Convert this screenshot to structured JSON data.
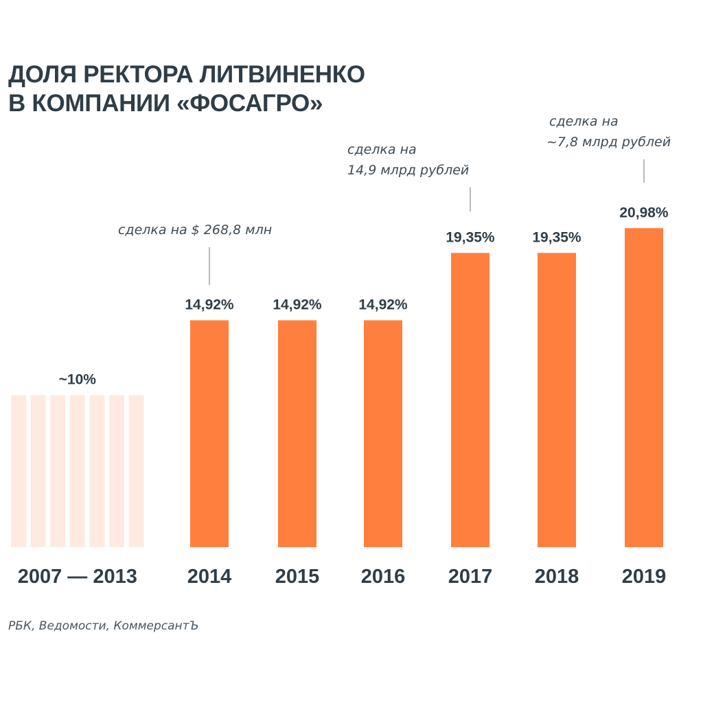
{
  "title_lines": [
    "ДОЛЯ РЕКТОРА ЛИТВИНЕНКО",
    "В КОМПАНИИ «ФОСАГРО»"
  ],
  "source": "РБК, Ведомости, КоммерсантЪ",
  "colors": {
    "bar": "#ff7f3f",
    "bar_faded": "#ffeae1",
    "text": "#2f3d47",
    "leader_line": "#9aa3aa"
  },
  "chart_data": {
    "type": "bar",
    "title": "ДОЛЯ РЕКТОРА ЛИТВИНЕНКО В КОМПАНИИ «ФОСАГРО»",
    "xlabel": "",
    "ylabel": "",
    "ylim": [
      0,
      22
    ],
    "grid": false,
    "unit": "%",
    "categories": [
      "2007 — 2013",
      "2014",
      "2015",
      "2016",
      "2017",
      "2018",
      "2019"
    ],
    "values": [
      10,
      14.92,
      14.92,
      14.92,
      19.35,
      19.35,
      20.98
    ],
    "value_labels": [
      "~10%",
      "14,92%",
      "14,92%",
      "14,92%",
      "19,35%",
      "19,35%",
      "20,98%"
    ],
    "faded_group": {
      "category": "2007 — 2013",
      "bar_count": 7
    },
    "annotations": [
      {
        "category": "2014",
        "lines": [
          "сделка на $ 268,8 млн"
        ]
      },
      {
        "category": "2017",
        "lines": [
          "сделка на",
          "14,9 млрд рублей"
        ]
      },
      {
        "category": "2019",
        "lines": [
          "сделка на",
          "~7,8 млрд рублей"
        ]
      }
    ]
  }
}
